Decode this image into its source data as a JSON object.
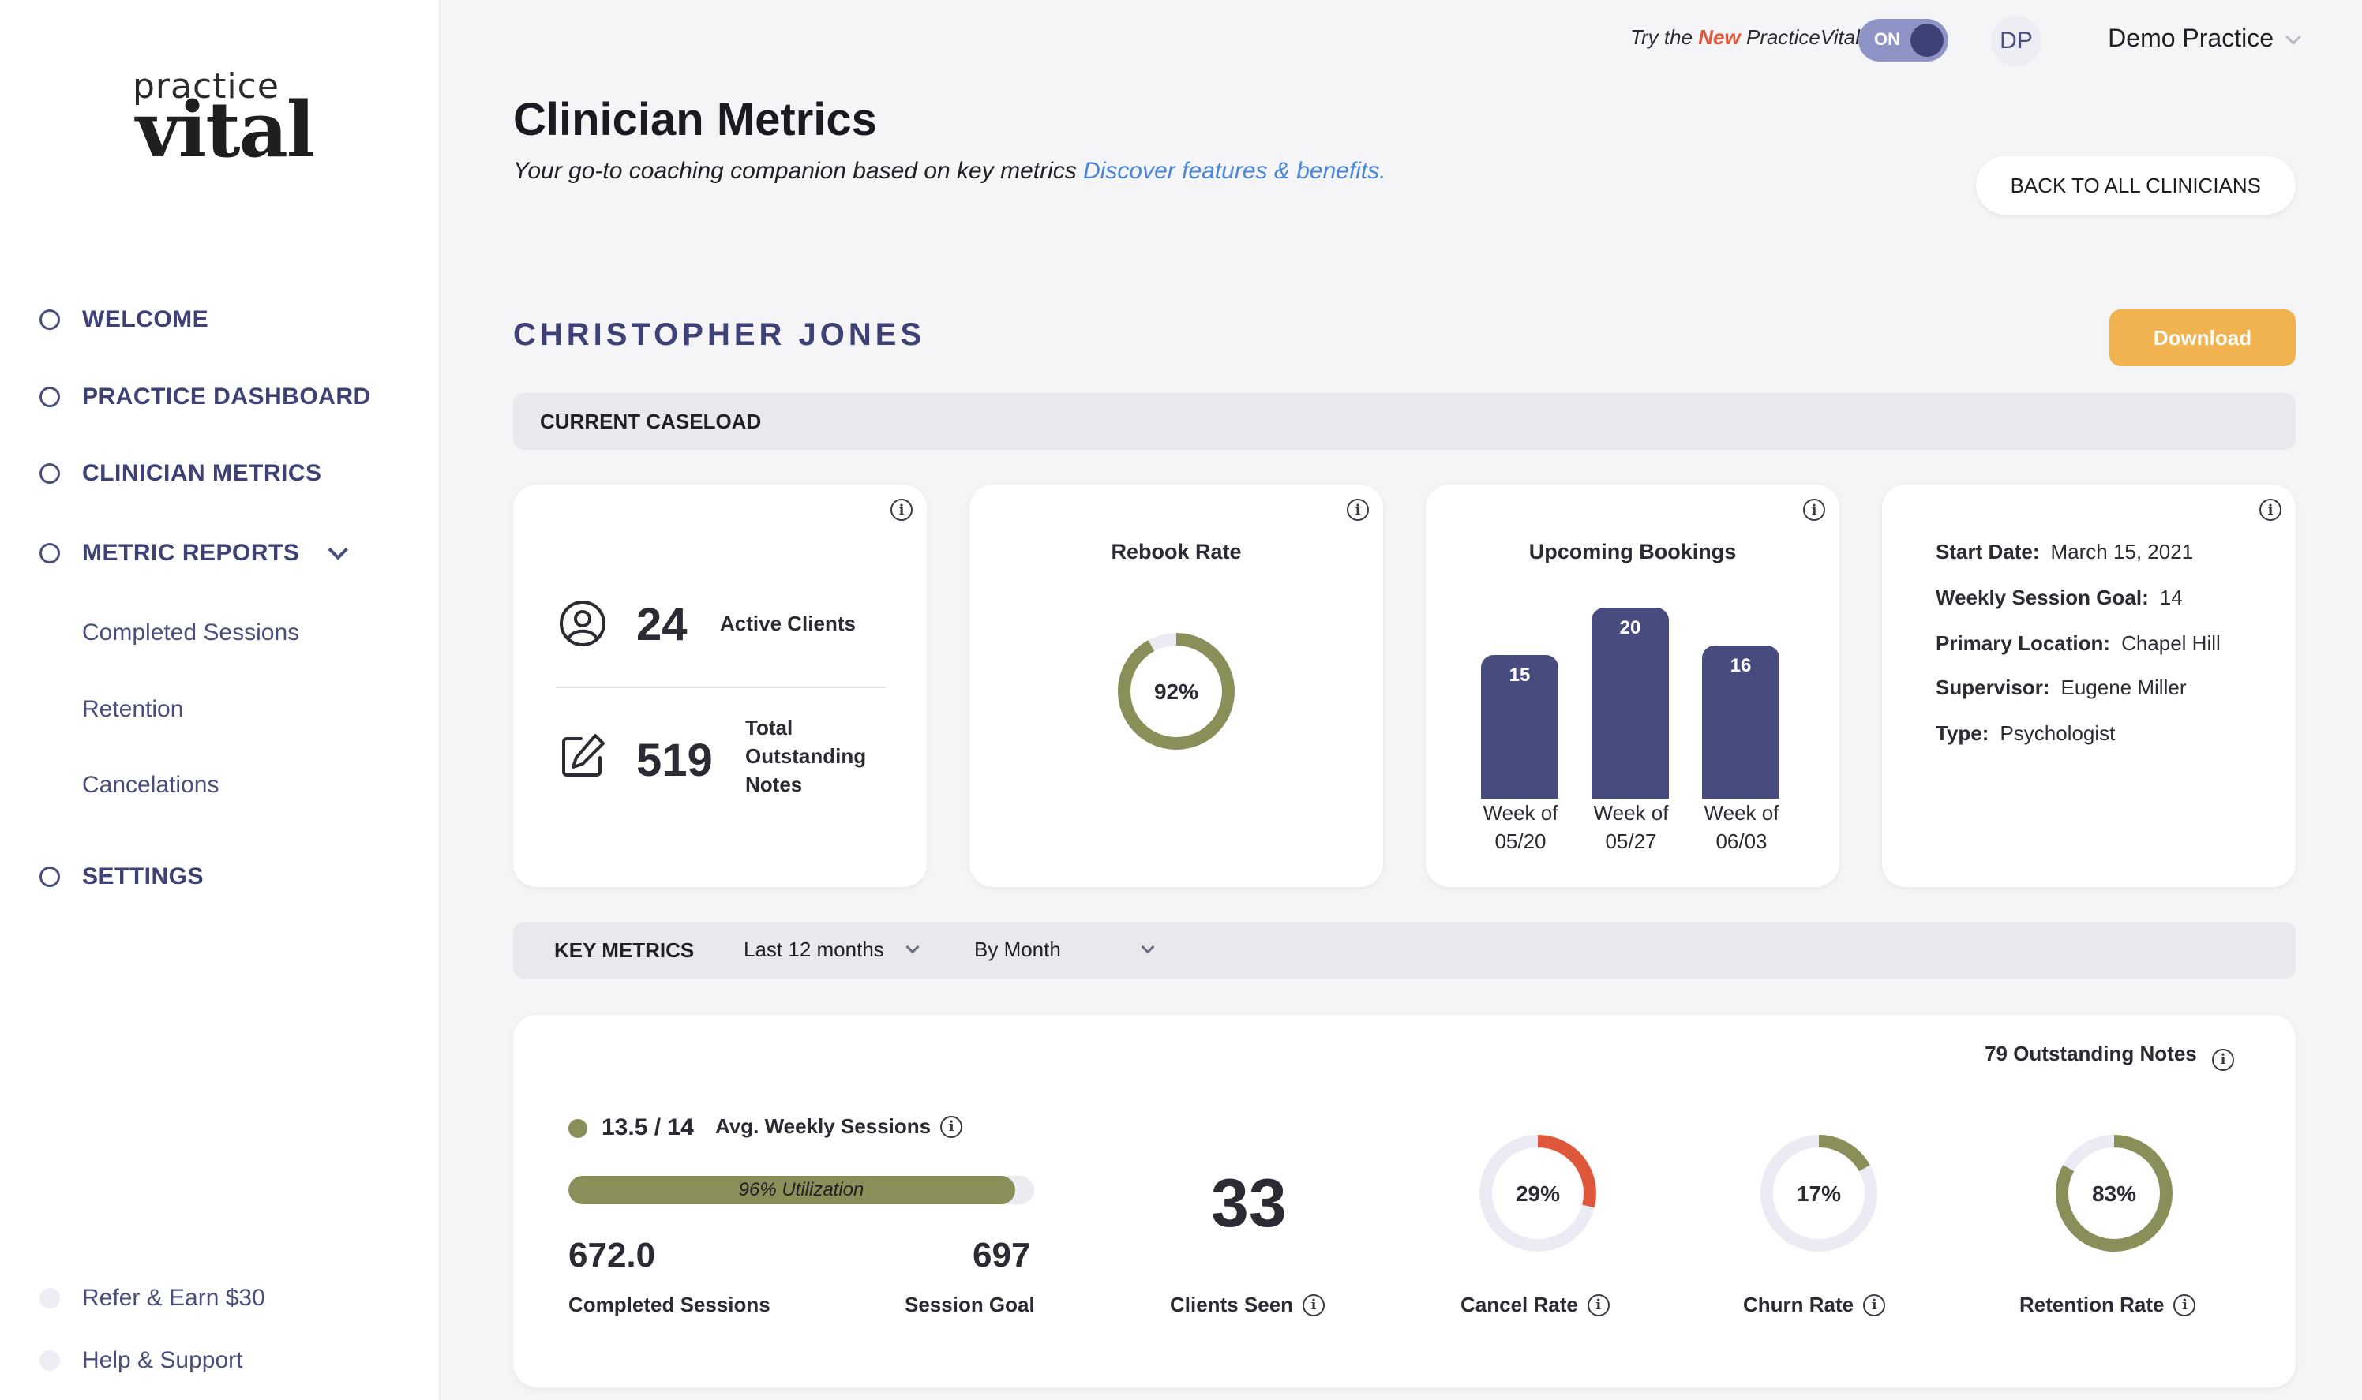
{
  "logo": {
    "top": "practice",
    "bottom": "vital"
  },
  "nav": {
    "welcome": "WELCOME",
    "practice_dashboard": "PRACTICE DASHBOARD",
    "clinician_metrics": "CLINICIAN METRICS",
    "metric_reports": "METRIC REPORTS",
    "sub_items": [
      "Completed Sessions",
      "Retention",
      "Cancelations"
    ],
    "settings": "SETTINGS",
    "footer": [
      "Refer & Earn $30",
      "Help & Support"
    ]
  },
  "topbar": {
    "try_prefix": "Try the ",
    "try_new": "New",
    "try_brand": " PracticeVital",
    "toggle_label": "ON",
    "avatar_initials": "DP",
    "practice_name": "Demo Practice"
  },
  "header": {
    "title": "Clinician Metrics",
    "subtitle": "Your go-to coaching companion based on key metrics ",
    "subtitle_link": "Discover features & benefits.",
    "back_button": "BACK TO ALL CLINICIANS",
    "clinician_name": "CHRISTOPHER JONES",
    "download_button": "Download"
  },
  "caseload": {
    "section_title": "CURRENT CASELOAD",
    "active_clients_value": "24",
    "active_clients_label": "Active Clients",
    "outstanding_notes_value": "519",
    "outstanding_notes_label_lines": [
      "Total",
      "Outstanding",
      "Notes"
    ],
    "rebook_title": "Rebook Rate",
    "rebook_value": 92,
    "rebook_label": "92%",
    "bookings_title": "Upcoming Bookings",
    "bookings": [
      {
        "value": 15,
        "label1": "Week of",
        "label2": "05/20"
      },
      {
        "value": 20,
        "label1": "Week of",
        "label2": "05/27"
      },
      {
        "value": 16,
        "label1": "Week of",
        "label2": "06/03"
      }
    ],
    "details": {
      "start_date_label": "Start Date:",
      "start_date": "March 15, 2021",
      "goal_label": "Weekly Session Goal:",
      "goal": "14",
      "location_label": "Primary Location:",
      "location": "Chapel Hill",
      "supervisor_label": "Supervisor:",
      "supervisor": "Eugene Miller",
      "type_label": "Type:",
      "type": "Psychologist"
    }
  },
  "key_metrics": {
    "section_title": "KEY METRICS",
    "range_select": "Last 12 months",
    "group_select": "By Month",
    "outstanding_notes": "79 Outstanding Notes",
    "weekly_value": "13.5 / 14",
    "weekly_label": "Avg. Weekly Sessions",
    "utilization_value": 96,
    "utilization_label": "96% Utilization",
    "completed_value": "672.0",
    "completed_label": "Completed Sessions",
    "goal_value": "697",
    "goal_label": "Session Goal",
    "clients_seen_value": "33",
    "clients_seen_label": "Clients Seen",
    "cancel_rate": 29,
    "cancel_label": "29%",
    "cancel_title": "Cancel Rate",
    "churn_rate": 17,
    "churn_label": "17%",
    "churn_title": "Churn Rate",
    "retention_rate": 83,
    "retention_label": "83%",
    "retention_title": "Retention Rate"
  },
  "colors": {
    "accent_navy": "#474b7d",
    "olive": "#8a8f5a",
    "cancel_red": "#e0583b",
    "track": "#ebebf3",
    "download_orange": "#f1b34f",
    "link_blue": "#4a86d8"
  }
}
